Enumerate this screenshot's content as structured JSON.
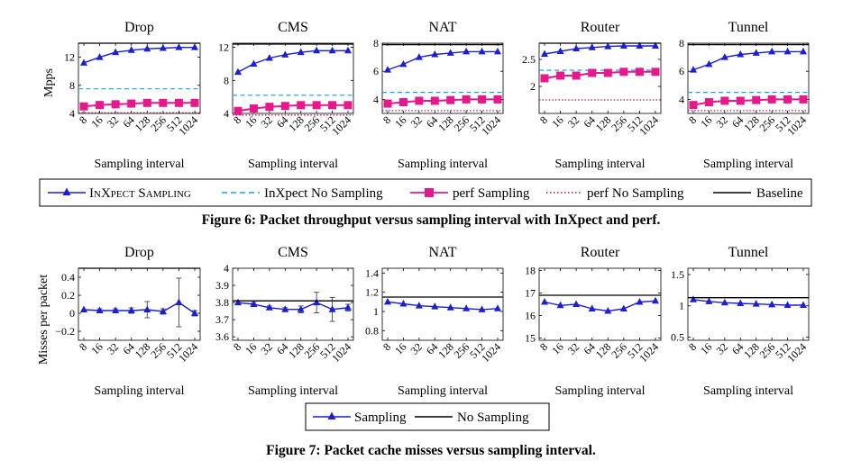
{
  "colors": {
    "inxpect": "#1c1fd0",
    "inxpect_dash": "#16a3e6",
    "perf": "#e5198c",
    "perf_dot": "#a3124e",
    "baseline": "#000000"
  },
  "fig6": {
    "caption": "Figure 6: Packet throughput versus sampling interval with InXpect and perf.",
    "ylabel": "Mpps",
    "xlabel": "Sampling interval",
    "legend": [
      "InXpect Sampling",
      "InXpect No Sampling",
      "perf Sampling",
      "perf No Sampling",
      "Baseline"
    ]
  },
  "fig7": {
    "caption": "Figure 7: Packet cache misses versus sampling interval.",
    "ylabel": "Misses per packet",
    "xlabel": "Sampling interval",
    "legend": [
      "Sampling",
      "No Sampling"
    ]
  },
  "chart_data": [
    {
      "type": "line",
      "figure": "6",
      "title": "Drop",
      "x": [
        "8",
        "16",
        "32",
        "64",
        "128",
        "256",
        "512",
        "1024"
      ],
      "ylim": [
        4,
        14
      ],
      "yticks": [
        4,
        8,
        12
      ],
      "series": [
        {
          "name": "InXpect Sampling",
          "values": [
            11.2,
            12.0,
            12.7,
            13.0,
            13.2,
            13.3,
            13.4,
            13.4
          ]
        },
        {
          "name": "InXpect No Sampling",
          "constant": 7.5
        },
        {
          "name": "perf Sampling",
          "values": [
            5.0,
            5.2,
            5.3,
            5.4,
            5.5,
            5.5,
            5.5,
            5.5
          ]
        },
        {
          "name": "perf No Sampling",
          "constant": 4.1
        },
        {
          "name": "Baseline",
          "constant": 14.3
        }
      ]
    },
    {
      "type": "line",
      "figure": "6",
      "title": "CMS",
      "x": [
        "8",
        "16",
        "32",
        "64",
        "128",
        "256",
        "512",
        "1024"
      ],
      "ylim": [
        4,
        12.5
      ],
      "yticks": [
        4,
        8,
        12
      ],
      "series": [
        {
          "name": "InXpect Sampling",
          "values": [
            9.0,
            10.0,
            10.7,
            11.1,
            11.4,
            11.6,
            11.6,
            11.6
          ]
        },
        {
          "name": "InXpect No Sampling",
          "constant": 6.2
        },
        {
          "name": "perf Sampling",
          "values": [
            4.3,
            4.6,
            4.8,
            4.9,
            5.0,
            5.0,
            5.0,
            5.0
          ]
        },
        {
          "name": "perf No Sampling",
          "constant": 3.8
        },
        {
          "name": "Baseline",
          "constant": 12.4
        }
      ]
    },
    {
      "type": "line",
      "figure": "6",
      "title": "NAT",
      "x": [
        "8",
        "16",
        "32",
        "64",
        "128",
        "256",
        "512",
        "1024"
      ],
      "ylim": [
        3,
        8
      ],
      "yticks": [
        4,
        6,
        8
      ],
      "series": [
        {
          "name": "InXpect Sampling",
          "values": [
            6.1,
            6.5,
            7.0,
            7.2,
            7.3,
            7.4,
            7.4,
            7.4
          ]
        },
        {
          "name": "InXpect No Sampling",
          "constant": 4.5
        },
        {
          "name": "perf Sampling",
          "values": [
            3.7,
            3.8,
            3.9,
            3.9,
            3.95,
            4.0,
            4.0,
            4.0
          ]
        },
        {
          "name": "perf No Sampling",
          "constant": 3.2
        },
        {
          "name": "Baseline",
          "constant": 7.9
        }
      ]
    },
    {
      "type": "line",
      "figure": "6",
      "title": "Router",
      "x": [
        "8",
        "16",
        "32",
        "64",
        "128",
        "256",
        "512",
        "1024"
      ],
      "ylim": [
        1.5,
        2.8
      ],
      "yticks": [
        2,
        2.5
      ],
      "series": [
        {
          "name": "InXpect Sampling",
          "values": [
            2.6,
            2.65,
            2.7,
            2.72,
            2.74,
            2.75,
            2.75,
            2.75
          ]
        },
        {
          "name": "InXpect No Sampling",
          "constant": 2.3
        },
        {
          "name": "perf Sampling",
          "values": [
            2.15,
            2.2,
            2.2,
            2.25,
            2.25,
            2.27,
            2.27,
            2.27
          ]
        },
        {
          "name": "perf No Sampling",
          "constant": 1.75
        },
        {
          "name": "Baseline",
          "constant": 2.8
        }
      ]
    },
    {
      "type": "line",
      "figure": "6",
      "title": "Tunnel",
      "x": [
        "8",
        "16",
        "32",
        "64",
        "128",
        "256",
        "512",
        "1024"
      ],
      "ylim": [
        3,
        8
      ],
      "yticks": [
        4,
        6,
        8
      ],
      "series": [
        {
          "name": "InXpect Sampling",
          "values": [
            6.1,
            6.5,
            7.0,
            7.2,
            7.3,
            7.4,
            7.4,
            7.4
          ]
        },
        {
          "name": "InXpect No Sampling",
          "constant": 4.5
        },
        {
          "name": "perf Sampling",
          "values": [
            3.6,
            3.8,
            3.9,
            3.9,
            3.95,
            4.0,
            4.0,
            4.0
          ]
        },
        {
          "name": "perf No Sampling",
          "constant": 3.2
        },
        {
          "name": "Baseline",
          "constant": 7.9
        }
      ]
    },
    {
      "type": "line",
      "figure": "7",
      "title": "Drop",
      "x": [
        "8",
        "16",
        "32",
        "64",
        "128",
        "256",
        "512",
        "1024"
      ],
      "ylim": [
        -0.3,
        0.5
      ],
      "yticks": [
        "−0.2",
        "0",
        "0.2",
        "0.4"
      ],
      "ytick_values": [
        -0.2,
        0,
        0.2,
        0.4
      ],
      "series": [
        {
          "name": "Sampling",
          "values": [
            0.04,
            0.03,
            0.03,
            0.03,
            0.04,
            0.02,
            0.12,
            0.0
          ],
          "error": [
            0.0,
            0.02,
            0.02,
            0.03,
            0.09,
            0.03,
            0.27,
            0.03
          ]
        },
        {
          "name": "No Sampling",
          "constant": 0.5
        }
      ]
    },
    {
      "type": "line",
      "figure": "7",
      "title": "CMS",
      "x": [
        "8",
        "16",
        "32",
        "64",
        "128",
        "256",
        "512",
        "1024"
      ],
      "ylim": [
        3.58,
        4.0
      ],
      "yticks": [
        "3.6",
        "3.7",
        "3.8",
        "3.9",
        "4"
      ],
      "ytick_values": [
        3.6,
        3.7,
        3.8,
        3.9,
        4.0
      ],
      "series": [
        {
          "name": "Sampling",
          "values": [
            3.8,
            3.79,
            3.77,
            3.76,
            3.76,
            3.8,
            3.76,
            3.77
          ],
          "error": [
            0.0,
            0.01,
            0.01,
            0.01,
            0.02,
            0.06,
            0.07,
            0.02
          ]
        },
        {
          "name": "No Sampling",
          "constant": 3.81
        }
      ]
    },
    {
      "type": "line",
      "figure": "7",
      "title": "NAT",
      "x": [
        "8",
        "16",
        "32",
        "64",
        "128",
        "256",
        "512",
        "1024"
      ],
      "ylim": [
        0.7,
        1.45
      ],
      "yticks": [
        "0.8",
        "1",
        "1.2",
        "1.4"
      ],
      "ytick_values": [
        0.8,
        1.0,
        1.2,
        1.4
      ],
      "series": [
        {
          "name": "Sampling",
          "values": [
            1.1,
            1.08,
            1.06,
            1.05,
            1.04,
            1.03,
            1.02,
            1.03
          ]
        },
        {
          "name": "No Sampling",
          "constant": 1.15
        }
      ]
    },
    {
      "type": "line",
      "figure": "7",
      "title": "Router",
      "x": [
        "8",
        "16",
        "32",
        "64",
        "128",
        "256",
        "512",
        "1024"
      ],
      "ylim": [
        14.9,
        18.1
      ],
      "yticks": [
        "15",
        "16",
        "17",
        "18"
      ],
      "ytick_values": [
        15,
        16,
        17,
        18
      ],
      "series": [
        {
          "name": "Sampling",
          "values": [
            16.6,
            16.45,
            16.5,
            16.3,
            16.2,
            16.3,
            16.6,
            16.65
          ]
        },
        {
          "name": "No Sampling",
          "constant": 16.9
        }
      ]
    },
    {
      "type": "line",
      "figure": "7",
      "title": "Tunnel",
      "x": [
        "8",
        "16",
        "32",
        "64",
        "128",
        "256",
        "512",
        "1024"
      ],
      "ylim": [
        0.45,
        1.6
      ],
      "yticks": [
        "0.5",
        "1",
        "1.5"
      ],
      "ytick_values": [
        0.5,
        1.0,
        1.5
      ],
      "series": [
        {
          "name": "Sampling",
          "values": [
            1.1,
            1.07,
            1.05,
            1.04,
            1.03,
            1.02,
            1.01,
            1.01
          ]
        },
        {
          "name": "No Sampling",
          "constant": 1.13
        }
      ]
    }
  ]
}
